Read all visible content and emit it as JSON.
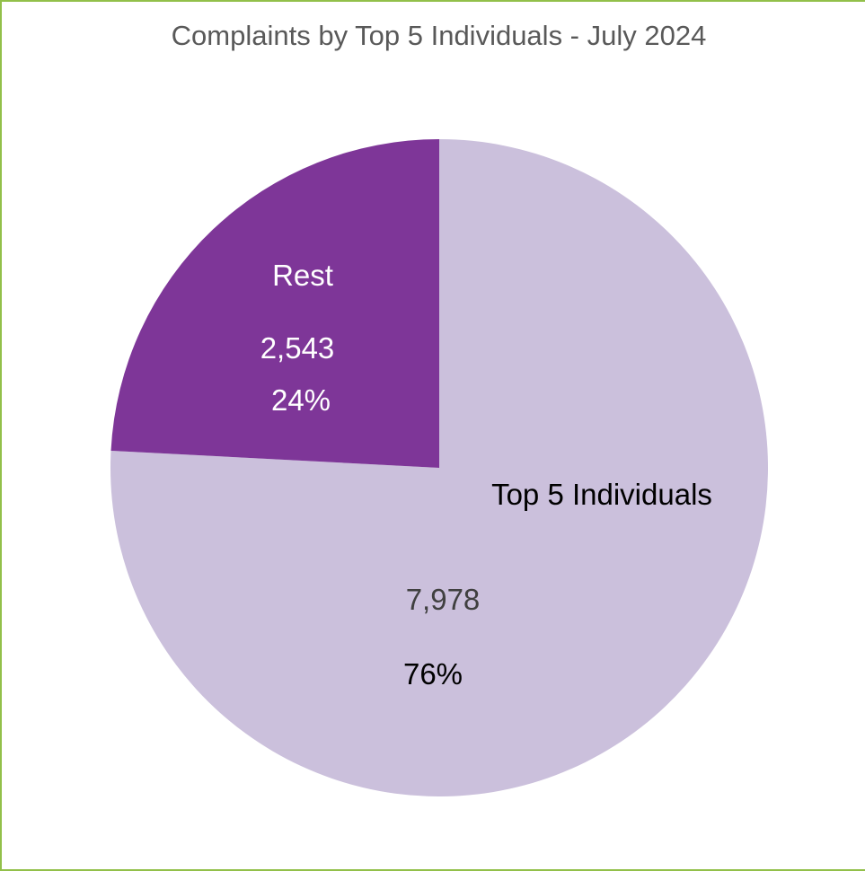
{
  "chart_data": {
    "type": "pie",
    "title": "Complaints by Top 5 Individuals - July 2024",
    "slices": [
      {
        "label": "Top 5 Individuals",
        "value": 7978,
        "value_label": "7,978",
        "percent_label": "76%",
        "color": "#cbc0dc"
      },
      {
        "label": "Rest",
        "value": 2543,
        "value_label": "2,543",
        "percent_label": "24%",
        "color": "#7e3698"
      }
    ],
    "colors": {
      "frame_border": "#92c04a",
      "title_text": "#595959",
      "rest_label_text": "#ffffff",
      "top5_label_text": "#000000",
      "top5_value_text": "#404040"
    }
  }
}
